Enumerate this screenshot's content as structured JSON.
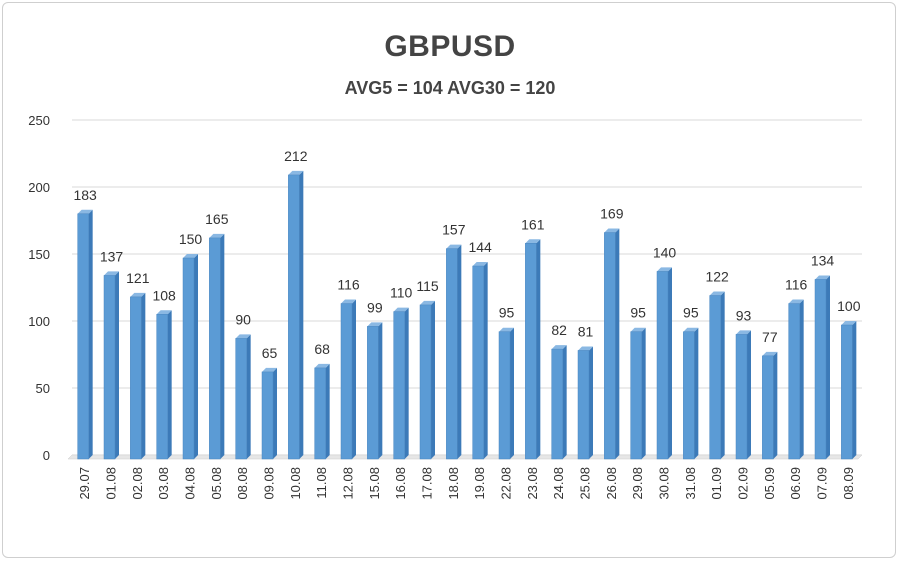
{
  "chart_data": {
    "type": "bar",
    "title": "GBPUSD",
    "subtitle": "AVG5 = 104 AVG30 = 120",
    "xlabel": "",
    "ylabel": "",
    "ylim": [
      0,
      250
    ],
    "yticks": [
      0,
      50,
      100,
      150,
      200,
      250
    ],
    "grid": true,
    "categories": [
      "29.07",
      "01.08",
      "02.08",
      "03.08",
      "04.08",
      "05.08",
      "08.08",
      "09.08",
      "10.08",
      "11.08",
      "12.08",
      "15.08",
      "16.08",
      "17.08",
      "18.08",
      "19.08",
      "22.08",
      "23.08",
      "24.08",
      "25.08",
      "26.08",
      "29.08",
      "30.08",
      "31.08",
      "01.09",
      "02.09",
      "05.09",
      "06.09",
      "07.09",
      "08.09"
    ],
    "values": [
      183,
      137,
      121,
      108,
      150,
      165,
      90,
      65,
      212,
      68,
      116,
      99,
      110,
      115,
      157,
      144,
      95,
      161,
      82,
      81,
      169,
      95,
      140,
      95,
      122,
      93,
      77,
      116,
      134,
      100
    ],
    "colors": {
      "bar": "#5b9bd5",
      "bar_dark": "#3c7ab8",
      "bar_light": "#8ab8e3",
      "grid": "#d9d9d9",
      "text": "#333333"
    }
  }
}
